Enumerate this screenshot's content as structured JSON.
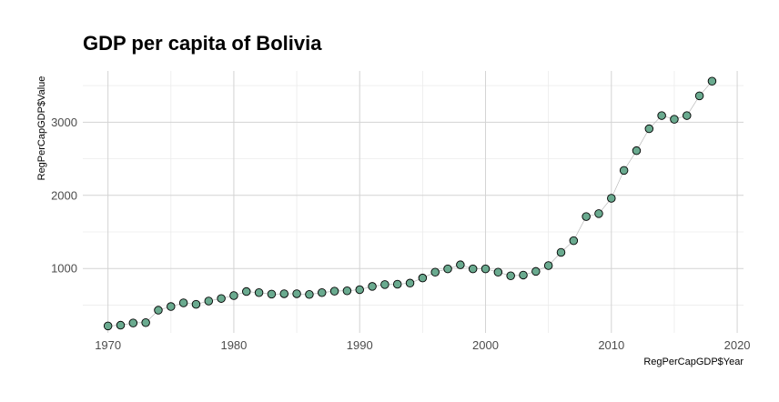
{
  "chart_data": {
    "type": "scatter",
    "title": "GDP per capita of Bolivia",
    "xlabel": "RegPerCapGDP$Year",
    "ylabel": "RegPerCapGDP$Value",
    "xlim": [
      1968,
      2020.5
    ],
    "ylim": [
      120,
      3700
    ],
    "x_ticks": [
      1970,
      1980,
      1990,
      2000,
      2010,
      2020
    ],
    "y_ticks": [
      1000,
      2000,
      3000
    ],
    "grid": true,
    "connect_points": true,
    "point_color": "#6aaa8f",
    "point_outline": "#000000",
    "line_color": "#b0b0b0",
    "points": [
      {
        "x": 1970,
        "y": 215
      },
      {
        "x": 1971,
        "y": 225
      },
      {
        "x": 1972,
        "y": 255
      },
      {
        "x": 1973,
        "y": 260
      },
      {
        "x": 1974,
        "y": 430
      },
      {
        "x": 1975,
        "y": 480
      },
      {
        "x": 1976,
        "y": 530
      },
      {
        "x": 1977,
        "y": 510
      },
      {
        "x": 1978,
        "y": 555
      },
      {
        "x": 1979,
        "y": 590
      },
      {
        "x": 1980,
        "y": 630
      },
      {
        "x": 1981,
        "y": 685
      },
      {
        "x": 1982,
        "y": 670
      },
      {
        "x": 1983,
        "y": 650
      },
      {
        "x": 1984,
        "y": 655
      },
      {
        "x": 1985,
        "y": 655
      },
      {
        "x": 1986,
        "y": 645
      },
      {
        "x": 1987,
        "y": 670
      },
      {
        "x": 1988,
        "y": 690
      },
      {
        "x": 1989,
        "y": 695
      },
      {
        "x": 1990,
        "y": 710
      },
      {
        "x": 1991,
        "y": 755
      },
      {
        "x": 1992,
        "y": 780
      },
      {
        "x": 1993,
        "y": 785
      },
      {
        "x": 1994,
        "y": 800
      },
      {
        "x": 1995,
        "y": 870
      },
      {
        "x": 1996,
        "y": 950
      },
      {
        "x": 1997,
        "y": 995
      },
      {
        "x": 1998,
        "y": 1050
      },
      {
        "x": 1999,
        "y": 995
      },
      {
        "x": 2000,
        "y": 995
      },
      {
        "x": 2001,
        "y": 950
      },
      {
        "x": 2002,
        "y": 900
      },
      {
        "x": 2003,
        "y": 910
      },
      {
        "x": 2004,
        "y": 960
      },
      {
        "x": 2005,
        "y": 1040
      },
      {
        "x": 2006,
        "y": 1220
      },
      {
        "x": 2007,
        "y": 1380
      },
      {
        "x": 2008,
        "y": 1710
      },
      {
        "x": 2009,
        "y": 1750
      },
      {
        "x": 2010,
        "y": 1960
      },
      {
        "x": 2011,
        "y": 2340
      },
      {
        "x": 2012,
        "y": 2610
      },
      {
        "x": 2013,
        "y": 2910
      },
      {
        "x": 2014,
        "y": 3090
      },
      {
        "x": 2015,
        "y": 3040
      },
      {
        "x": 2016,
        "y": 3090
      },
      {
        "x": 2017,
        "y": 3360
      },
      {
        "x": 2018,
        "y": 3560
      }
    ]
  }
}
